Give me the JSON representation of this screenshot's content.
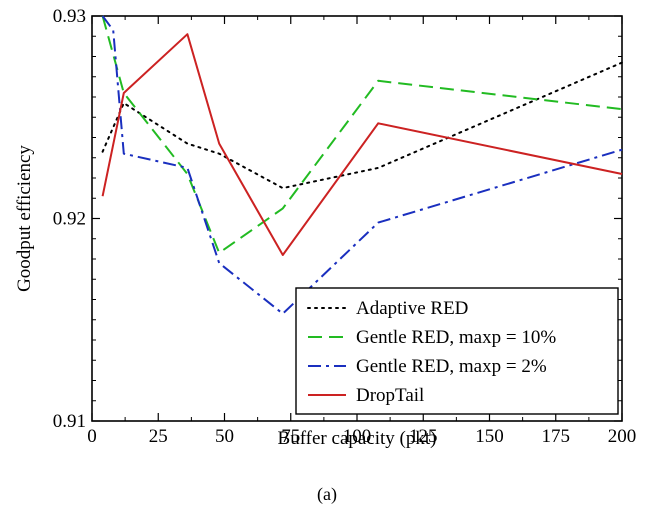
{
  "chart_data": {
    "type": "line",
    "xlabel": "Buffer capacity (pkt)",
    "ylabel": "Goodput efficiency",
    "caption": "(a)",
    "xlim": [
      0,
      200
    ],
    "ylim": [
      0.91,
      0.93
    ],
    "x_ticks": [
      0,
      25,
      50,
      75,
      100,
      125,
      150,
      175,
      200
    ],
    "x_tick_labels": [
      "0",
      "25",
      "50",
      "75",
      "100",
      "125",
      "150",
      "175",
      "200"
    ],
    "y_ticks": [
      0.91,
      0.92,
      0.93
    ],
    "y_tick_labels": [
      "0.91",
      "0.92",
      "0.93"
    ],
    "grid": false,
    "legend": {
      "position": "bottom-right",
      "entries": [
        "Adaptive RED",
        "Gentle RED, maxp = 10%",
        "Gentle RED, maxp = 2%",
        "DropTail"
      ]
    },
    "series": [
      {
        "name": "Adaptive RED",
        "color": "#000000",
        "dash": "dotted",
        "x": [
          4,
          12,
          36,
          48,
          72,
          108,
          200
        ],
        "y": [
          0.9233,
          0.9257,
          0.9237,
          0.9232,
          0.9215,
          0.9225,
          0.9277
        ]
      },
      {
        "name": "Gentle RED, maxp = 10%",
        "color": "#22bb22",
        "dash": "dashed",
        "x": [
          4,
          12,
          36,
          48,
          72,
          108,
          200
        ],
        "y": [
          0.93,
          0.9262,
          0.9222,
          0.9183,
          0.9205,
          0.9268,
          0.9254
        ]
      },
      {
        "name": "Gentle RED, maxp = 2%",
        "color": "#1a2fbf",
        "dash": "dashdot",
        "x": [
          4,
          8,
          12,
          36,
          48,
          72,
          108,
          200
        ],
        "y": [
          0.93,
          0.9293,
          0.9232,
          0.9225,
          0.9178,
          0.9153,
          0.9198,
          0.9234
        ]
      },
      {
        "name": "DropTail",
        "color": "#cc2222",
        "dash": "solid",
        "x": [
          4,
          12,
          36,
          48,
          72,
          108,
          200
        ],
        "y": [
          0.9211,
          0.9262,
          0.9291,
          0.9237,
          0.9182,
          0.9247,
          0.9222
        ]
      }
    ]
  }
}
